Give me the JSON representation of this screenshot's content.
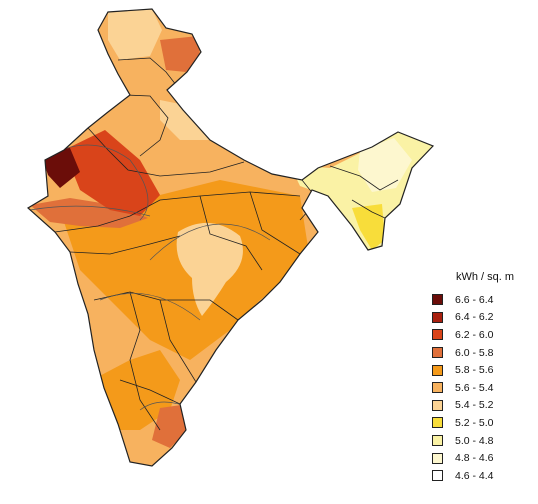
{
  "map": {
    "legend": {
      "title": "kWh / sq. m",
      "items": [
        {
          "label": "6.6 - 6.4",
          "color": "#6b0d09"
        },
        {
          "label": "6.4 - 6.2",
          "color": "#a8200f"
        },
        {
          "label": "6.2 - 6.0",
          "color": "#d9441a"
        },
        {
          "label": "6.0 - 5.8",
          "color": "#e0703a"
        },
        {
          "label": "5.8 - 5.6",
          "color": "#f49a1a"
        },
        {
          "label": "5.6 - 5.4",
          "color": "#f7b25f"
        },
        {
          "label": "5.4 - 5.2",
          "color": "#fbd395"
        },
        {
          "label": "5.2 - 5.0",
          "color": "#f8dd3a"
        },
        {
          "label": "5.0 - 4.8",
          "color": "#faf2a5"
        },
        {
          "label": "4.8 - 4.6",
          "color": "#fdf7cf"
        },
        {
          "label": "4.6 - 4.4",
          "color": "#ffffff"
        }
      ]
    }
  }
}
